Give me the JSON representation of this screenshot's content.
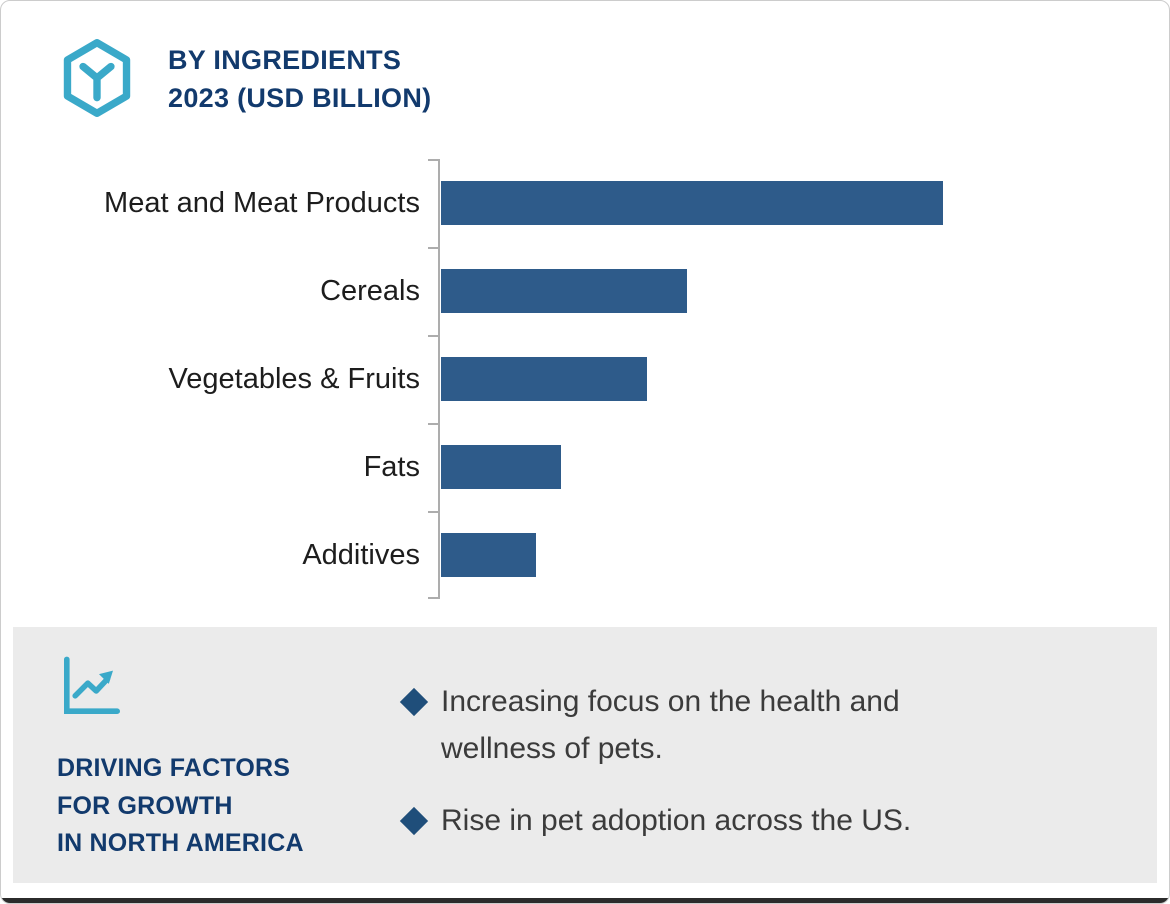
{
  "chart_data": {
    "type": "bar",
    "orientation": "horizontal",
    "title": "BY INGREDIENTS",
    "subtitle": "2023 (USD BILLION)",
    "categories": [
      "Meat and Meat Products",
      "Cereals",
      "Vegetables & Fruits",
      "Fats",
      "Additives"
    ],
    "values": [
      10.0,
      4.9,
      4.1,
      2.4,
      1.9
    ],
    "unit": "USD Billion",
    "xlim": [
      0,
      10.4
    ],
    "grid": false,
    "legend": false,
    "value_labels_shown": false,
    "bar_color": "#2E5B8A",
    "axis_color": "#ADADAD"
  },
  "footer": {
    "icon": "line-chart-icon",
    "heading_lines": [
      "DRIVING FACTORS",
      "FOR GROWTH",
      "IN NORTH AMERICA"
    ],
    "bullets": [
      "Increasing focus on the health and wellness of pets.",
      "Rise in pet adoption across the US."
    ]
  },
  "colors": {
    "accent_teal": "#3AA9C9",
    "navy": "#123A6D",
    "bar_blue": "#2E5B8A",
    "panel_gray": "#EBEBEB",
    "bullet_diamond": "#1F4E7A",
    "text_dark": "#3B3B3B",
    "bottom_bar": "#2B2B2B"
  }
}
